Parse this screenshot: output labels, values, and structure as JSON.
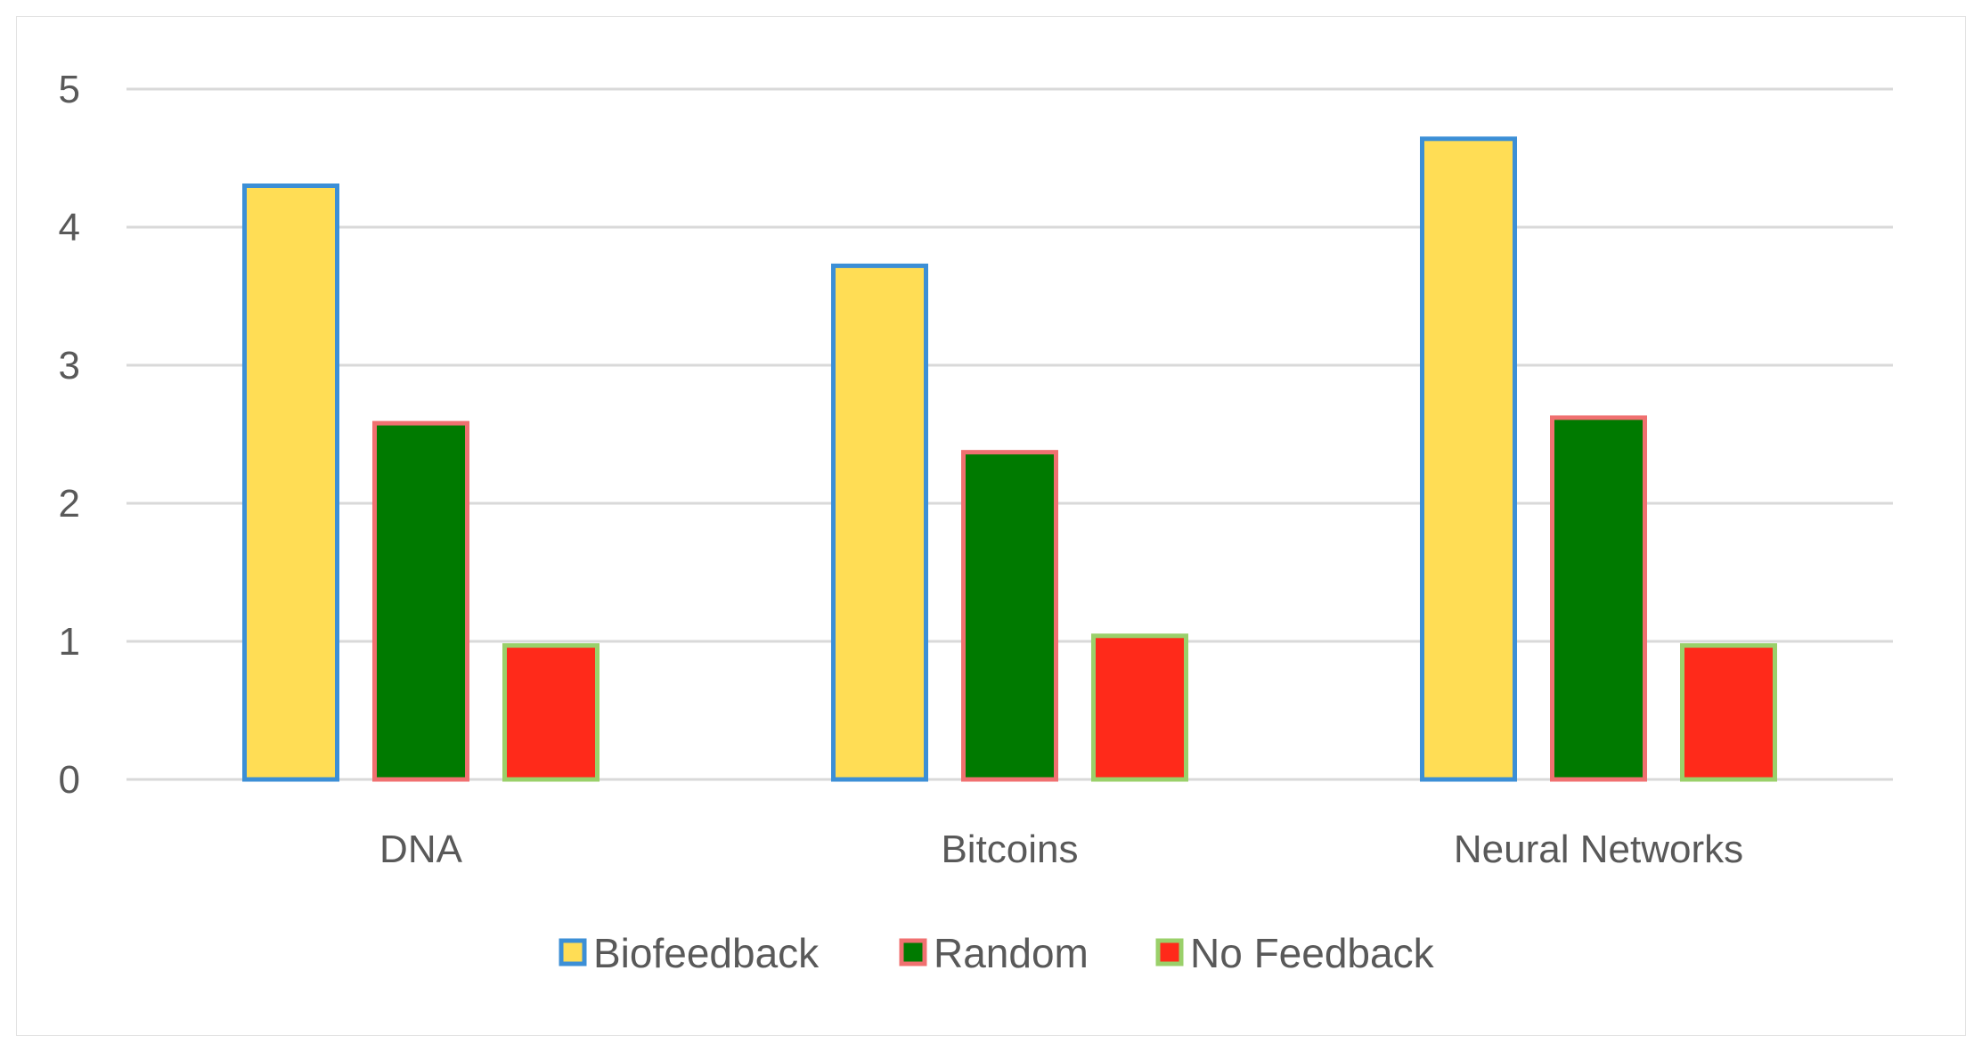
{
  "chart_data": {
    "type": "bar",
    "title": "",
    "xlabel": "",
    "ylabel": "",
    "categories": [
      "DNA",
      "Bitcoins",
      "Neural Networks"
    ],
    "series": [
      {
        "name": "Biofeedback",
        "values": [
          4.3,
          3.72,
          4.64
        ],
        "fill": "#FFDD55",
        "stroke": "#3C8FD6"
      },
      {
        "name": "Random",
        "values": [
          2.58,
          2.37,
          2.62
        ],
        "fill": "#007A00",
        "stroke": "#F07070"
      },
      {
        "name": "No Feedback",
        "values": [
          0.97,
          1.04,
          0.97
        ],
        "fill": "#FF2A1A",
        "stroke": "#9AD06A"
      }
    ],
    "ylim": [
      0,
      5
    ],
    "yticks": [
      "0",
      "1",
      "2",
      "3",
      "4",
      "5"
    ],
    "grid": true,
    "legend_position": "bottom"
  }
}
